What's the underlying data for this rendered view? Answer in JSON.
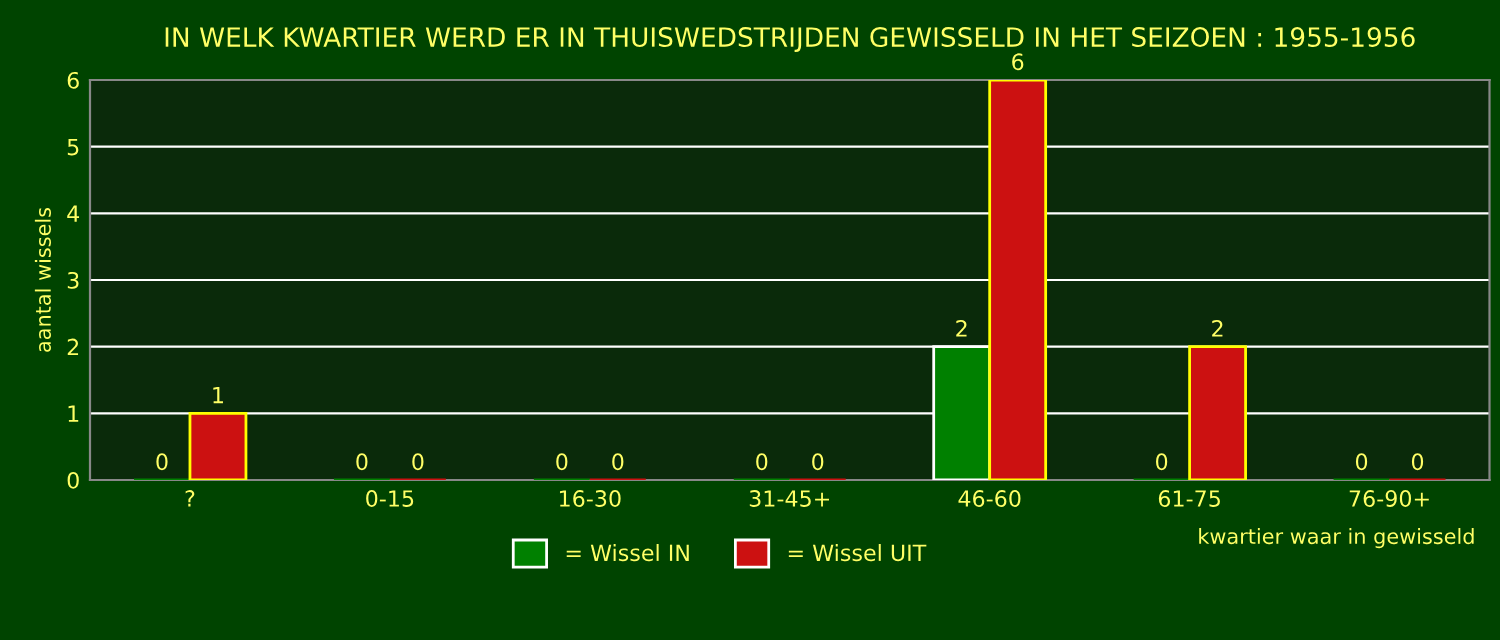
{
  "chart_data": {
    "type": "bar",
    "title": "IN WELK KWARTIER WERD ER IN THUISWEDSTRIJDEN GEWISSELD IN HET SEIZOEN : 1955-1956",
    "xlabel": "kwartier waar in gewisseld",
    "ylabel": "aantal wissels",
    "categories": [
      "?",
      "0-15",
      "16-30",
      "31-45+",
      "46-60",
      "61-75",
      "76-90+"
    ],
    "series": [
      {
        "name": "= Wissel IN",
        "color": "#008000",
        "values": [
          0,
          0,
          0,
          0,
          2,
          0,
          0
        ]
      },
      {
        "name": "= Wissel UIT",
        "color": "#cc1111",
        "values": [
          1,
          0,
          0,
          0,
          6,
          2,
          0
        ]
      }
    ],
    "ylim": [
      0,
      6
    ],
    "yticks": [
      0,
      1,
      2,
      3,
      4,
      5,
      6
    ],
    "grid": "y",
    "legend": "bottom",
    "data_labels": true
  }
}
